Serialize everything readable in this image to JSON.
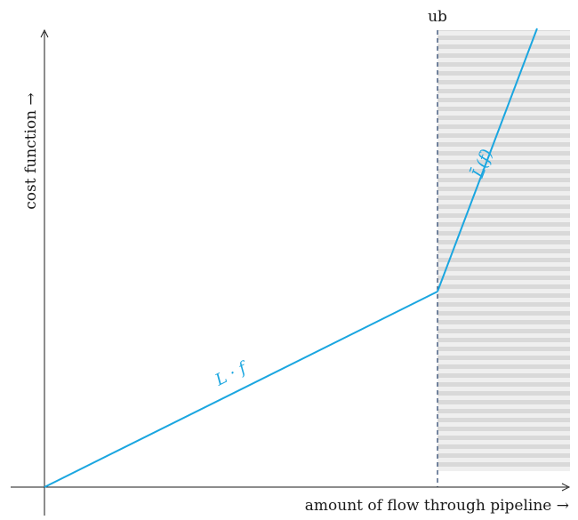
{
  "diagram": {
    "x_axis_label": "amount of flow through pipeline →",
    "y_axis_label": "cost function →",
    "upper_bound_label": "ub",
    "segment_low_label": "L · f",
    "segment_high_label": "L̄(f)",
    "colors": {
      "curve": "#1aa6e0",
      "axis": "#1a1a1a",
      "hatch_stripe": "#d9d9d9",
      "hatch_bg": "#efefef",
      "bound_line": "#1f3b66"
    }
  }
}
